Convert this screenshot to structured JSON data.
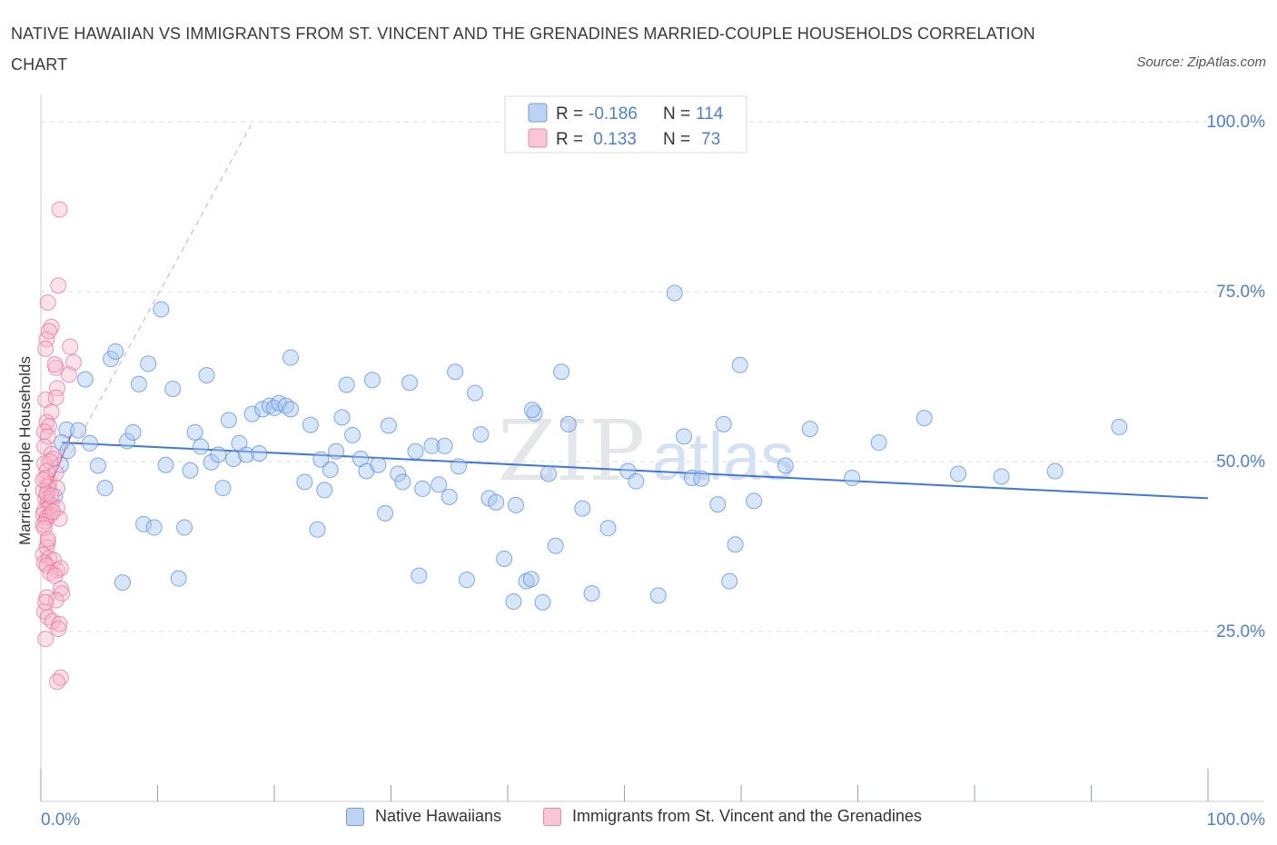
{
  "title": "NATIVE HAWAIIAN VS IMMIGRANTS FROM ST. VINCENT AND THE GRENADINES MARRIED-COUPLE HOUSEHOLDS CORRELATION CHART",
  "source": "Source: ZipAtlas.com",
  "watermark": {
    "zip": "ZIP",
    "atlas": "atlas"
  },
  "colors": {
    "blue": "#5b8ee0",
    "blue_fill": "#a9c8f2",
    "pink": "#ea6f97",
    "pink_fill": "#f5b3c8",
    "grid": "#d9dde3",
    "tick_text": "#4f7fd1"
  },
  "stats_legend": [
    {
      "r_label": "R =",
      "r_value": "-0.186",
      "n_label": "N =",
      "n_value": "114"
    },
    {
      "r_label": "R =",
      "r_value": " 0.133",
      "n_label": "N =",
      "n_value": "73"
    }
  ],
  "chart_data": {
    "type": "scatter",
    "title": "NATIVE HAWAIIAN VS IMMIGRANTS FROM ST. VINCENT AND THE GRENADINES MARRIED-COUPLE HOUSEHOLDS CORRELATION CHART",
    "xlabel": "",
    "ylabel": "Married-couple Households",
    "xlim": [
      0,
      100
    ],
    "ylim": [
      0,
      100
    ],
    "x_tick_labels": [
      "0.0%",
      "100.0%"
    ],
    "y_tick_labels": [
      "100.0%",
      "75.0%",
      "50.0%",
      "25.0%"
    ],
    "y_ticks": [
      100,
      75,
      50,
      25
    ],
    "grid": true,
    "legend_position": "bottom",
    "series": [
      {
        "name": "Native Hawaiians",
        "color": "#5b8ee0",
        "trend": {
          "x": [
            1.8,
            100
          ],
          "y": [
            52.8,
            44.6
          ]
        },
        "points": [
          [
            2.2,
            54.7
          ],
          [
            1.8,
            52.8
          ],
          [
            2.3,
            51.6
          ],
          [
            1.7,
            49.5
          ],
          [
            1.2,
            44.9
          ],
          [
            3.2,
            54.6
          ],
          [
            4.2,
            52.7
          ],
          [
            3.8,
            62.1
          ],
          [
            4.9,
            49.4
          ],
          [
            5.5,
            46.1
          ],
          [
            6.0,
            65.1
          ],
          [
            6.4,
            66.2
          ],
          [
            7.0,
            32.2
          ],
          [
            7.4,
            53.0
          ],
          [
            7.9,
            54.3
          ],
          [
            8.4,
            61.4
          ],
          [
            8.8,
            40.8
          ],
          [
            9.2,
            64.4
          ],
          [
            9.7,
            40.3
          ],
          [
            10.3,
            72.4
          ],
          [
            10.7,
            49.5
          ],
          [
            11.3,
            60.7
          ],
          [
            11.8,
            32.8
          ],
          [
            12.3,
            40.3
          ],
          [
            12.8,
            48.7
          ],
          [
            13.2,
            54.3
          ],
          [
            13.7,
            52.2
          ],
          [
            14.2,
            62.7
          ],
          [
            14.6,
            49.9
          ],
          [
            15.2,
            51.0
          ],
          [
            15.6,
            46.1
          ],
          [
            16.1,
            56.1
          ],
          [
            16.5,
            50.4
          ],
          [
            17.0,
            52.7
          ],
          [
            17.6,
            51.0
          ],
          [
            18.1,
            57.0
          ],
          [
            18.7,
            51.2
          ],
          [
            19.0,
            57.7
          ],
          [
            19.6,
            58.2
          ],
          [
            20.0,
            57.9
          ],
          [
            20.4,
            58.6
          ],
          [
            21.0,
            58.2
          ],
          [
            21.4,
            57.7
          ],
          [
            21.4,
            65.3
          ],
          [
            22.6,
            47.0
          ],
          [
            23.1,
            55.4
          ],
          [
            23.7,
            40.0
          ],
          [
            24.0,
            50.3
          ],
          [
            24.3,
            45.8
          ],
          [
            24.8,
            48.8
          ],
          [
            25.3,
            51.5
          ],
          [
            25.8,
            56.5
          ],
          [
            26.2,
            61.3
          ],
          [
            26.7,
            53.9
          ],
          [
            27.4,
            50.4
          ],
          [
            27.9,
            48.6
          ],
          [
            28.4,
            62.0
          ],
          [
            28.9,
            49.5
          ],
          [
            29.5,
            42.4
          ],
          [
            29.8,
            55.3
          ],
          [
            30.6,
            48.2
          ],
          [
            31.0,
            47.0
          ],
          [
            31.6,
            61.6
          ],
          [
            32.1,
            51.5
          ],
          [
            32.4,
            33.2
          ],
          [
            32.7,
            46.0
          ],
          [
            33.5,
            52.3
          ],
          [
            34.1,
            46.6
          ],
          [
            34.6,
            52.3
          ],
          [
            35.0,
            44.8
          ],
          [
            35.5,
            63.2
          ],
          [
            35.8,
            49.3
          ],
          [
            36.5,
            32.6
          ],
          [
            37.2,
            60.1
          ],
          [
            37.7,
            54.0
          ],
          [
            38.4,
            44.6
          ],
          [
            39.0,
            44.0
          ],
          [
            39.7,
            35.7
          ],
          [
            40.5,
            29.4
          ],
          [
            40.7,
            43.6
          ],
          [
            41.6,
            32.4
          ],
          [
            42.0,
            32.7
          ],
          [
            42.3,
            57.1
          ],
          [
            42.1,
            57.6
          ],
          [
            43.0,
            29.3
          ],
          [
            43.5,
            48.2
          ],
          [
            44.1,
            37.6
          ],
          [
            44.6,
            63.2
          ],
          [
            45.2,
            55.5
          ],
          [
            46.4,
            43.1
          ],
          [
            47.2,
            30.6
          ],
          [
            48.6,
            40.2
          ],
          [
            50.3,
            48.6
          ],
          [
            51.0,
            47.1
          ],
          [
            52.9,
            30.3
          ],
          [
            54.3,
            74.8
          ],
          [
            55.1,
            53.7
          ],
          [
            55.8,
            47.6
          ],
          [
            56.6,
            47.5
          ],
          [
            58.0,
            43.7
          ],
          [
            58.5,
            55.5
          ],
          [
            59.0,
            32.4
          ],
          [
            59.5,
            37.8
          ],
          [
            59.9,
            64.2
          ],
          [
            61.1,
            44.2
          ],
          [
            63.8,
            49.4
          ],
          [
            65.9,
            54.8
          ],
          [
            69.5,
            47.6
          ],
          [
            71.8,
            52.8
          ],
          [
            75.7,
            56.4
          ],
          [
            78.6,
            48.2
          ],
          [
            82.3,
            47.8
          ],
          [
            86.9,
            48.6
          ],
          [
            92.4,
            55.1
          ]
        ]
      },
      {
        "name": "Immigrants from St. Vincent and the Grenadines",
        "color": "#ea6f97",
        "trend": {
          "x": [
            0.1,
            2.6
          ],
          "y": [
            43.5,
            54.0
          ]
        },
        "trend_extended": {
          "x": [
            0.1,
            18.0
          ],
          "y": [
            43.5,
            99.5
          ]
        },
        "points": [
          [
            1.6,
            87.1
          ],
          [
            1.5,
            75.9
          ],
          [
            0.6,
            73.4
          ],
          [
            0.9,
            69.8
          ],
          [
            0.5,
            68.0
          ],
          [
            0.7,
            69.2
          ],
          [
            0.4,
            66.6
          ],
          [
            2.5,
            66.9
          ],
          [
            1.3,
            63.8
          ],
          [
            1.2,
            64.3
          ],
          [
            2.8,
            64.6
          ],
          [
            2.4,
            62.8
          ],
          [
            1.4,
            60.8
          ],
          [
            0.4,
            59.1
          ],
          [
            1.3,
            59.4
          ],
          [
            0.9,
            57.3
          ],
          [
            0.5,
            55.8
          ],
          [
            0.7,
            55.2
          ],
          [
            0.3,
            54.4
          ],
          [
            0.6,
            53.7
          ],
          [
            0.3,
            52.2
          ],
          [
            0.9,
            51.1
          ],
          [
            1.1,
            50.4
          ],
          [
            0.3,
            49.7
          ],
          [
            0.8,
            50.0
          ],
          [
            0.5,
            48.6
          ],
          [
            1.3,
            48.3
          ],
          [
            0.4,
            47.6
          ],
          [
            0.7,
            46.7
          ],
          [
            1.4,
            46.1
          ],
          [
            0.6,
            46.3
          ],
          [
            0.2,
            45.7
          ],
          [
            0.4,
            44.5
          ],
          [
            0.6,
            44.0
          ],
          [
            0.9,
            43.6
          ],
          [
            1.4,
            43.2
          ],
          [
            0.3,
            42.8
          ],
          [
            0.2,
            42.2
          ],
          [
            0.5,
            41.8
          ],
          [
            0.8,
            42.1
          ],
          [
            1.6,
            41.6
          ],
          [
            0.4,
            41.2
          ],
          [
            0.2,
            40.7
          ],
          [
            0.3,
            40.2
          ],
          [
            0.6,
            38.2
          ],
          [
            0.5,
            37.4
          ],
          [
            0.2,
            36.3
          ],
          [
            0.7,
            35.8
          ],
          [
            1.1,
            35.5
          ],
          [
            0.3,
            35.1
          ],
          [
            0.5,
            34.7
          ],
          [
            1.4,
            34.0
          ],
          [
            1.7,
            34.3
          ],
          [
            0.8,
            33.6
          ],
          [
            1.2,
            33.2
          ],
          [
            1.7,
            31.3
          ],
          [
            1.8,
            30.6
          ],
          [
            0.5,
            30.0
          ],
          [
            1.3,
            29.6
          ],
          [
            0.3,
            27.9
          ],
          [
            0.6,
            27.1
          ],
          [
            1.0,
            26.5
          ],
          [
            1.6,
            26.1
          ],
          [
            1.5,
            25.4
          ],
          [
            0.4,
            23.9
          ],
          [
            1.7,
            18.2
          ],
          [
            1.4,
            17.6
          ],
          [
            0.5,
            45.3
          ],
          [
            0.9,
            45.0
          ],
          [
            0.6,
            38.6
          ],
          [
            0.4,
            29.3
          ],
          [
            0.2,
            47.3
          ],
          [
            1.0,
            42.6
          ]
        ]
      }
    ]
  },
  "bottom_legend": [
    {
      "label": "Native Hawaiians"
    },
    {
      "label": "Immigrants from St. Vincent and the Grenadines"
    }
  ]
}
